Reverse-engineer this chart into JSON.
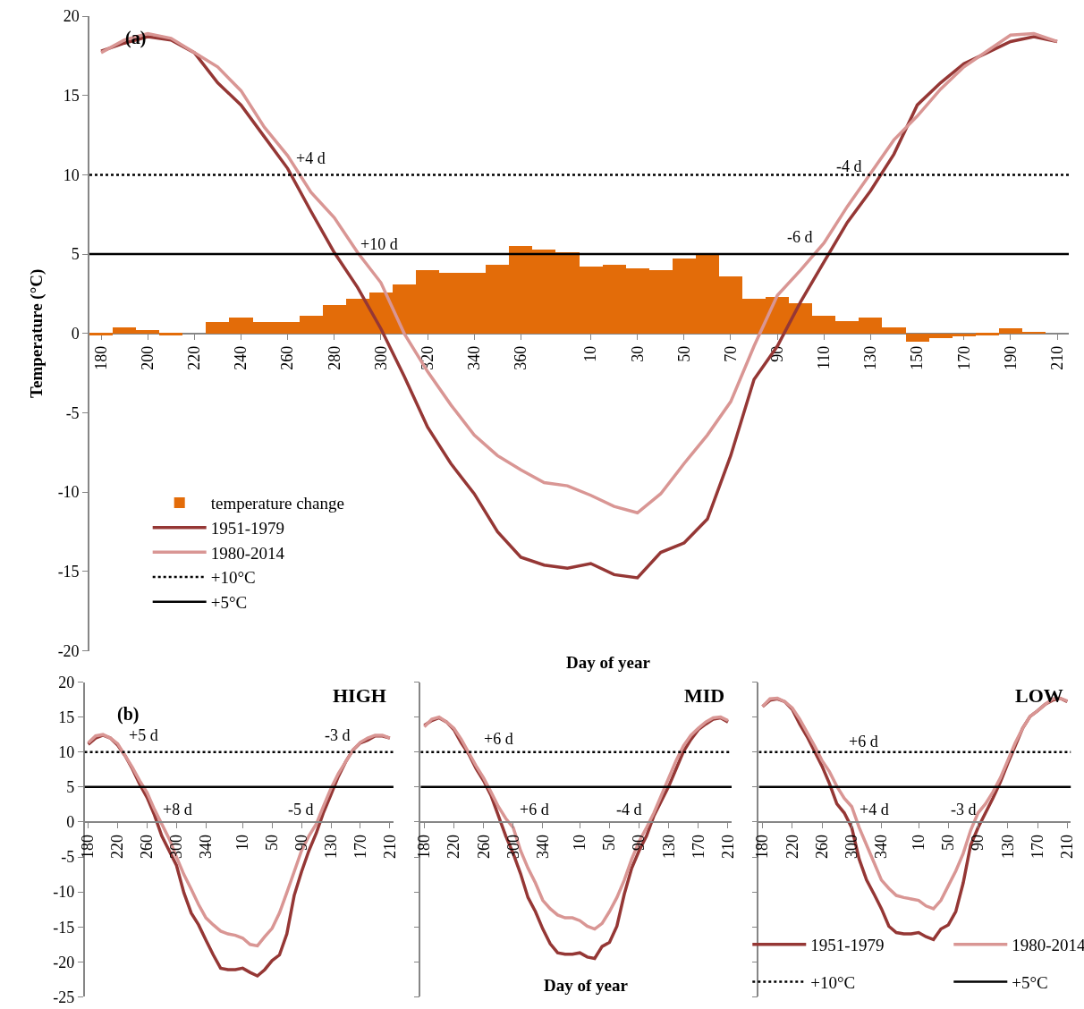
{
  "chart_data": [
    {
      "type": "line",
      "xlabel": "Day of year",
      "ylabel": "Temperature (°C)",
      "annotations": [
        "(a)",
        "+4 d",
        "+10 d",
        "-4 d",
        "-6 d"
      ],
      "categories": [
        "180",
        null,
        "200",
        null,
        "220",
        null,
        "240",
        null,
        "260",
        null,
        "280",
        null,
        "300",
        null,
        "320",
        null,
        "340",
        null,
        "360",
        null,
        null,
        "10",
        null,
        "30",
        null,
        "50",
        null,
        "70",
        null,
        "90",
        null,
        "110",
        null,
        "130",
        null,
        "150",
        null,
        "170",
        null,
        "190",
        null,
        "210"
      ],
      "series": [
        {
          "type": "bar",
          "name": "temperature change",
          "color": "#e36c09",
          "values": [
            -0.1,
            0.4,
            0.2,
            -0.1,
            null,
            0.7,
            1.0,
            0.7,
            0.7,
            1.1,
            1.8,
            2.2,
            2.6,
            3.1,
            4.0,
            3.8,
            3.8,
            4.3,
            5.5,
            5.3,
            5.1,
            4.2,
            4.3,
            4.1,
            4.0,
            4.7,
            5.0,
            3.6,
            2.2,
            2.3,
            1.9,
            1.1,
            0.8,
            1.0,
            0.4,
            -0.5,
            -0.3,
            -0.2,
            -0.1,
            0.3,
            0.1,
            null
          ]
        },
        {
          "name": "1951-1979",
          "color": "#953735",
          "values": [
            17.8,
            18.3,
            18.7,
            18.5,
            17.7,
            15.8,
            14.4,
            12.4,
            10.4,
            7.7,
            5.1,
            2.9,
            0.3,
            -2.7,
            -5.9,
            -8.2,
            -10.1,
            -12.5,
            -14.1,
            -14.6,
            -14.8,
            -14.5,
            -15.2,
            -15.4,
            -13.8,
            -13.2,
            -11.7,
            -7.7,
            -2.9,
            -0.8,
            2.0,
            4.5,
            7.0,
            9.0,
            11.3,
            14.4,
            15.8,
            17.0,
            17.7,
            18.4,
            18.7,
            18.4
          ]
        },
        {
          "name": "1980-2014",
          "color": "#d99694",
          "values": [
            17.7,
            18.5,
            18.9,
            18.6,
            17.7,
            16.8,
            15.3,
            13.0,
            11.2,
            8.9,
            7.3,
            5.1,
            3.2,
            0.0,
            -2.4,
            -4.5,
            -6.4,
            -7.7,
            -8.6,
            -9.4,
            -9.6,
            -10.2,
            -10.9,
            -11.3,
            -10.1,
            -8.2,
            -6.4,
            -4.3,
            -0.8,
            2.4,
            4.0,
            5.7,
            8.0,
            10.1,
            12.2,
            13.7,
            15.4,
            16.8,
            17.8,
            18.8,
            18.9,
            18.4
          ]
        }
      ],
      "ref_lines": [
        {
          "axis": "y",
          "value": 10,
          "label": "+10°C",
          "line_style": "dotted",
          "color": "#000000"
        },
        {
          "axis": "y",
          "value": 5,
          "label": "+5°C",
          "line_style": "solid",
          "color": "#000000"
        }
      ],
      "ylim": [
        -20,
        20
      ],
      "yticks": [
        -20,
        -15,
        -10,
        -5,
        0,
        5,
        10,
        15,
        20
      ],
      "legend": "bottom left"
    },
    {
      "type": "line",
      "title": "HIGH",
      "annotations": [
        "(b)",
        "+5 d",
        "+8 d",
        "-5 d",
        "-3 d"
      ],
      "categories": [
        "180",
        null,
        null,
        null,
        "220",
        null,
        null,
        null,
        "260",
        null,
        null,
        null,
        "300",
        null,
        null,
        null,
        "340",
        null,
        null,
        null,
        null,
        "10",
        null,
        null,
        null,
        "50",
        null,
        null,
        null,
        "90",
        null,
        null,
        null,
        "130",
        null,
        null,
        null,
        "170",
        null,
        null,
        null,
        "210"
      ],
      "series": [
        {
          "color": "#953735",
          "values": [
            11.1,
            12.0,
            12.4,
            12.0,
            11.0,
            9.5,
            7.6,
            5.4,
            3.5,
            1.0,
            -2.0,
            -4.1,
            -6.2,
            -10.1,
            -13.0,
            -14.7,
            -16.9,
            -19.0,
            -20.9,
            -21.1,
            -21.1,
            -20.9,
            -21.5,
            -22.0,
            -21.1,
            -19.8,
            -19.0,
            -16.0,
            -10.5,
            -7.1,
            -4.1,
            -1.6,
            1.4,
            3.9,
            6.5,
            8.6,
            10.3,
            11.3,
            11.7,
            12.3,
            12.3,
            12.0
          ]
        },
        {
          "color": "#d99694",
          "values": [
            11.3,
            12.3,
            12.5,
            12.0,
            11.2,
            9.5,
            7.8,
            5.9,
            4.2,
            1.8,
            -0.3,
            -2.4,
            -5.0,
            -7.5,
            -9.6,
            -11.8,
            -13.7,
            -14.7,
            -15.6,
            -16.0,
            -16.2,
            -16.6,
            -17.5,
            -17.7,
            -16.4,
            -15.2,
            -13.0,
            -10.1,
            -7.1,
            -4.1,
            -2.0,
            -0.3,
            2.3,
            4.8,
            6.9,
            8.6,
            10.3,
            11.4,
            12.0,
            12.4,
            12.4,
            12.0
          ]
        }
      ],
      "ref_lines": [
        {
          "axis": "y",
          "value": 10,
          "line_style": "dotted",
          "color": "#000000"
        },
        {
          "axis": "y",
          "value": 5,
          "line_style": "solid",
          "color": "#000000"
        }
      ],
      "ylim": [
        -25,
        20
      ],
      "yticks": [
        -25,
        -20,
        -15,
        -10,
        -5,
        0,
        5,
        10,
        15,
        20
      ]
    },
    {
      "type": "line",
      "title": "MID",
      "xlabel": "Day of year",
      "annotations": [
        "+6 d",
        "+6 d",
        "-4 d"
      ],
      "categories": [
        "180",
        null,
        null,
        null,
        "220",
        null,
        null,
        null,
        "260",
        null,
        null,
        null,
        "300",
        null,
        null,
        null,
        "340",
        null,
        null,
        null,
        null,
        "10",
        null,
        null,
        null,
        "50",
        null,
        null,
        null,
        "90",
        null,
        null,
        null,
        "130",
        null,
        null,
        null,
        "170",
        null,
        null,
        null,
        "210"
      ],
      "series": [
        {
          "color": "#953735",
          "values": [
            13.8,
            14.5,
            14.9,
            14.3,
            13.2,
            11.3,
            9.7,
            7.6,
            5.9,
            3.8,
            0.9,
            -2.0,
            -4.5,
            -7.4,
            -10.8,
            -12.8,
            -15.3,
            -17.4,
            -18.7,
            -18.9,
            -18.9,
            -18.7,
            -19.3,
            -19.5,
            -17.8,
            -17.2,
            -14.9,
            -10.3,
            -6.6,
            -4.1,
            -2.0,
            0.9,
            3.0,
            5.1,
            7.6,
            10.1,
            11.8,
            13.2,
            14.0,
            14.7,
            14.9,
            14.3
          ]
        },
        {
          "color": "#d99694",
          "values": [
            13.6,
            14.7,
            15.0,
            14.3,
            13.4,
            11.8,
            9.9,
            8.0,
            6.3,
            4.3,
            2.2,
            0.5,
            -0.8,
            -4.1,
            -6.6,
            -8.7,
            -11.2,
            -12.4,
            -13.3,
            -13.7,
            -13.7,
            -14.1,
            -14.9,
            -15.3,
            -14.5,
            -12.8,
            -10.8,
            -8.3,
            -5.3,
            -2.8,
            -0.8,
            1.3,
            3.8,
            6.3,
            8.8,
            10.9,
            12.4,
            13.4,
            14.3,
            14.9,
            15.0,
            14.5
          ]
        }
      ],
      "ref_lines": [
        {
          "axis": "y",
          "value": 10,
          "line_style": "dotted",
          "color": "#000000"
        },
        {
          "axis": "y",
          "value": 5,
          "line_style": "solid",
          "color": "#000000"
        }
      ],
      "ylim": [
        -25,
        20
      ],
      "yticks": [
        -25,
        -20,
        -15,
        -10,
        -5,
        0,
        5,
        10,
        15,
        20
      ],
      "tick_labels": "x"
    },
    {
      "type": "line",
      "title": "LOW",
      "annotations": [
        "+6 d",
        "+4 d",
        "-3 d"
      ],
      "categories": [
        "180",
        null,
        null,
        null,
        "220",
        null,
        null,
        null,
        "260",
        null,
        null,
        null,
        "300",
        null,
        null,
        null,
        "340",
        null,
        null,
        null,
        null,
        "10",
        null,
        null,
        null,
        "50",
        null,
        null,
        null,
        "90",
        null,
        null,
        null,
        "130",
        null,
        null,
        null,
        "170",
        null,
        null,
        null,
        "210"
      ],
      "series": [
        {
          "name": "1951-1979",
          "color": "#953735",
          "values": [
            16.5,
            17.4,
            17.6,
            17.2,
            16.1,
            14.0,
            12.2,
            10.1,
            8.0,
            5.5,
            2.6,
            1.3,
            -0.8,
            -5.3,
            -8.3,
            -10.3,
            -12.4,
            -14.9,
            -15.8,
            -16.0,
            -16.0,
            -15.8,
            -16.4,
            -16.8,
            -15.3,
            -14.7,
            -12.8,
            -8.7,
            -3.3,
            -0.8,
            1.3,
            3.4,
            5.7,
            8.4,
            10.9,
            13.4,
            15.1,
            15.9,
            16.8,
            17.4,
            17.7,
            17.2
          ]
        },
        {
          "name": "1980-2014",
          "color": "#d99694",
          "values": [
            16.5,
            17.6,
            17.7,
            17.2,
            16.3,
            14.7,
            12.8,
            10.9,
            8.8,
            7.2,
            5.1,
            3.4,
            2.2,
            -0.8,
            -3.3,
            -5.8,
            -8.3,
            -9.5,
            -10.5,
            -10.8,
            -11.0,
            -11.2,
            -12.0,
            -12.4,
            -11.2,
            -9.1,
            -7.0,
            -4.5,
            -1.2,
            1.3,
            2.6,
            4.3,
            6.3,
            8.8,
            11.3,
            13.4,
            15.1,
            15.9,
            16.8,
            17.6,
            17.7,
            17.3
          ]
        }
      ],
      "ref_lines": [
        {
          "axis": "y",
          "value": 10,
          "label": "+10°C",
          "line_style": "dotted",
          "color": "#000000"
        },
        {
          "axis": "y",
          "value": 5,
          "label": "+5°C",
          "line_style": "solid",
          "color": "#000000"
        }
      ],
      "ylim": [
        -25,
        20
      ],
      "yticks": [
        -25,
        -20,
        -15,
        -10,
        -5,
        0,
        5,
        10,
        15,
        20
      ],
      "tick_labels": "x",
      "legend": "bottom"
    }
  ]
}
